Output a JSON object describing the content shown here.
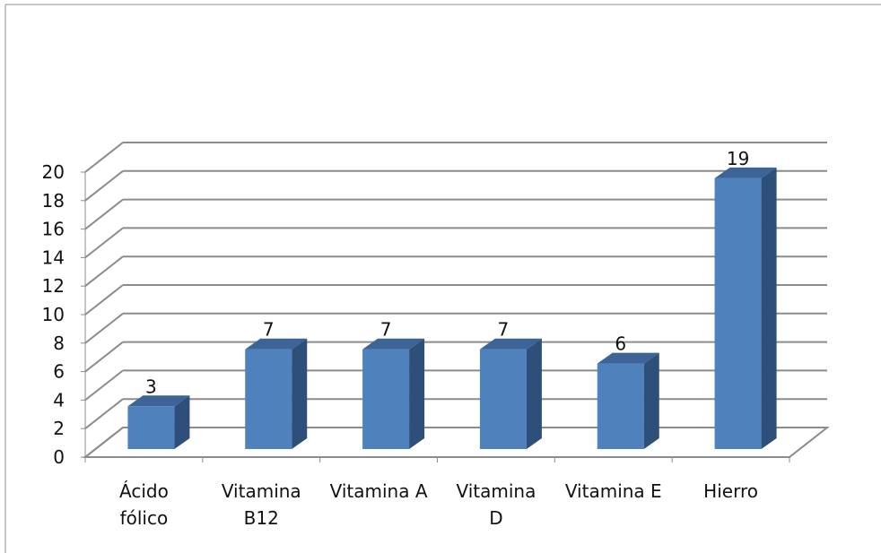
{
  "chart_data": {
    "type": "bar",
    "categories": [
      [
        "Ácido",
        "fólico"
      ],
      [
        "Vitamina",
        "B12"
      ],
      [
        "Vitamina A"
      ],
      [
        "Vitamina",
        "D"
      ],
      [
        "Vitamina E"
      ],
      [
        "Hierro"
      ]
    ],
    "values": [
      3,
      7,
      7,
      7,
      6,
      19
    ],
    "data_labels": [
      "3",
      "7",
      "7",
      "7",
      "6",
      "19"
    ],
    "ylim": [
      0,
      20
    ],
    "yticks": [
      "0",
      "2",
      "4",
      "6",
      "8",
      "10",
      "12",
      "14",
      "16",
      "18",
      "20"
    ],
    "grid": true,
    "three_d": true,
    "colors": {
      "bar_front": "#4F81BD",
      "bar_side": "#2E4F7A",
      "bar_top": "#3D6496",
      "grid": "#8C8C8C",
      "axis": "#8C8C8C",
      "border": "#8C8C8C"
    }
  }
}
